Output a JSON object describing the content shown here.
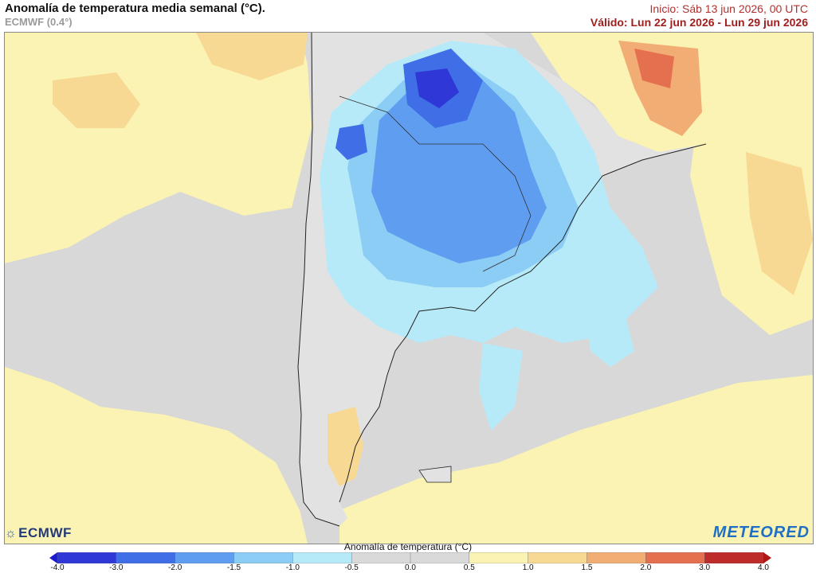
{
  "header": {
    "title": "Anomalía de temperatura media semanal (°C).",
    "subtitle": "ECMWF (0.4°)",
    "init": "Inicio: Sáb 13 jun 2026, 00 UTC",
    "valid": "Válido: Lun 22 jun 2026 - Lun 29 jun 2026"
  },
  "logos": {
    "left": "ECMWF",
    "right": "METEORED"
  },
  "colorbar": {
    "title": "Anomalía de temperatura (°C)",
    "labels": [
      "-4.0",
      "-3.0",
      "-2.0",
      "-1.5",
      "-1.0",
      "-0.5",
      "0.0",
      "0.5",
      "1.0",
      "1.5",
      "2.0",
      "3.0",
      "4.0"
    ],
    "colors": [
      "#2f38d6",
      "#3f6ee6",
      "#5f9df0",
      "#8ccdf5",
      "#b7eaf8",
      "#d9d9d9",
      "#d9d9d9",
      "#fbf3b3",
      "#f8d994",
      "#f2ad74",
      "#e5704f",
      "#bd2b2b"
    ]
  },
  "map": {
    "colors": {
      "ocean_neutral": "#d8d8d8",
      "land": "#e2e2e2",
      "warm_light": "#fbf3b3",
      "warm_mid": "#f8d994",
      "warm_high": "#f2ad74",
      "warm_max": "#e5704f",
      "cool_light": "#b7eaf8",
      "cool_mid": "#8ccdf5",
      "cool_strong": "#5f9df0",
      "cool_deep": "#3f6ee6",
      "cool_max": "#2f38d6"
    }
  }
}
